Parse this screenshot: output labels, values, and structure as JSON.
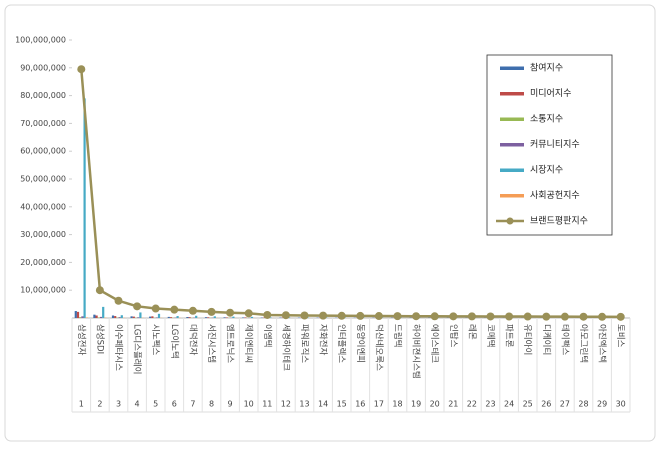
{
  "chart_data": {
    "type": "bar-line",
    "categories": [
      "삼성전자",
      "삼성SDI",
      "이수페타시스",
      "LG디스플레이",
      "시노펙스",
      "LG이노텍",
      "대덕전자",
      "서진시스템",
      "엠트로닉스",
      "제이엔티씨",
      "이엠텍",
      "세경하이테크",
      "파워로직스",
      "자화전자",
      "인터플렉스",
      "동양이엔피",
      "덕산네오룩스",
      "드림텍",
      "하이비젼시스템",
      "에이스테크",
      "인탑스",
      "레몬",
      "코메택",
      "파트론",
      "유티아이",
      "디케이티",
      "테이팩스",
      "아모그린텍",
      "아진엑스텍",
      "토비스"
    ],
    "ranks": [
      1,
      2,
      3,
      4,
      5,
      6,
      7,
      8,
      9,
      10,
      11,
      12,
      13,
      14,
      15,
      16,
      17,
      18,
      19,
      20,
      21,
      22,
      23,
      24,
      25,
      26,
      27,
      28,
      29,
      30
    ],
    "series": [
      {
        "name": "참여지수",
        "color": "#3e6ead",
        "values": [
          2500000,
          1200000,
          900000,
          600000,
          500000,
          400000,
          350000,
          300000,
          250000,
          200000,
          150000,
          150000,
          140000,
          130000,
          120000,
          110000,
          100000,
          100000,
          90000,
          90000,
          80000,
          80000,
          80000,
          70000,
          70000,
          70000,
          60000,
          60000,
          60000,
          50000
        ]
      },
      {
        "name": "미디어지수",
        "color": "#be4b48",
        "values": [
          2200000,
          900000,
          700000,
          500000,
          600000,
          300000,
          300000,
          250000,
          200000,
          200000,
          150000,
          120000,
          110000,
          100000,
          100000,
          90000,
          90000,
          80000,
          80000,
          70000,
          70000,
          70000,
          60000,
          60000,
          60000,
          50000,
          50000,
          50000,
          40000,
          40000
        ]
      },
      {
        "name": "소통지수",
        "color": "#98b954",
        "values": [
          300000,
          200000,
          150000,
          120000,
          100000,
          100000,
          90000,
          80000,
          80000,
          70000,
          60000,
          60000,
          50000,
          50000,
          50000,
          40000,
          40000,
          40000,
          40000,
          30000,
          30000,
          30000,
          30000,
          30000,
          30000,
          20000,
          20000,
          20000,
          20000,
          20000
        ]
      },
      {
        "name": "커뮤니티지수",
        "color": "#7d60a0",
        "values": [
          600000,
          400000,
          300000,
          250000,
          200000,
          150000,
          150000,
          120000,
          100000,
          100000,
          80000,
          80000,
          70000,
          70000,
          60000,
          60000,
          50000,
          50000,
          50000,
          40000,
          40000,
          40000,
          40000,
          30000,
          30000,
          30000,
          30000,
          30000,
          20000,
          20000
        ]
      },
      {
        "name": "시장지수",
        "color": "#46aac5",
        "values": [
          79000000,
          4000000,
          1000000,
          2000000,
          1500000,
          700000,
          800000,
          600000,
          500000,
          400000,
          200000,
          200000,
          180000,
          170000,
          160000,
          150000,
          140000,
          130000,
          120000,
          110000,
          100000,
          100000,
          100000,
          90000,
          90000,
          90000,
          80000,
          80000,
          80000,
          70000
        ]
      },
      {
        "name": "사회공헌지수",
        "color": "#f59d56",
        "values": [
          200000,
          150000,
          100000,
          100000,
          80000,
          80000,
          60000,
          60000,
          50000,
          50000,
          40000,
          40000,
          40000,
          30000,
          30000,
          30000,
          30000,
          20000,
          20000,
          20000,
          20000,
          20000,
          20000,
          10000,
          10000,
          10000,
          10000,
          10000,
          10000,
          10000
        ]
      },
      {
        "name": "브랜드평판지수",
        "color": "#9a9057",
        "line": true,
        "values": [
          89500000,
          10000000,
          6200000,
          4200000,
          3400000,
          3000000,
          2600000,
          2200000,
          1900000,
          1700000,
          1100000,
          1000000,
          900000,
          850000,
          800000,
          750000,
          700000,
          680000,
          650000,
          620000,
          600000,
          580000,
          560000,
          540000,
          520000,
          500000,
          480000,
          460000,
          440000,
          420000
        ]
      }
    ],
    "ylim": [
      0,
      100000000
    ],
    "yticks": [
      {
        "value": 10000000,
        "label": "10,000,000"
      },
      {
        "value": 20000000,
        "label": "20,000,000"
      },
      {
        "value": 30000000,
        "label": "30,000,000"
      },
      {
        "value": 40000000,
        "label": "40,000,000"
      },
      {
        "value": 50000000,
        "label": "50,000,000"
      },
      {
        "value": 60000000,
        "label": "60,000,000"
      },
      {
        "value": 70000000,
        "label": "70,000,000"
      },
      {
        "value": 80000000,
        "label": "80,000,000"
      },
      {
        "value": 90000000,
        "label": "90,000,000"
      },
      {
        "value": 100000000,
        "label": "100,000,000"
      }
    ]
  }
}
